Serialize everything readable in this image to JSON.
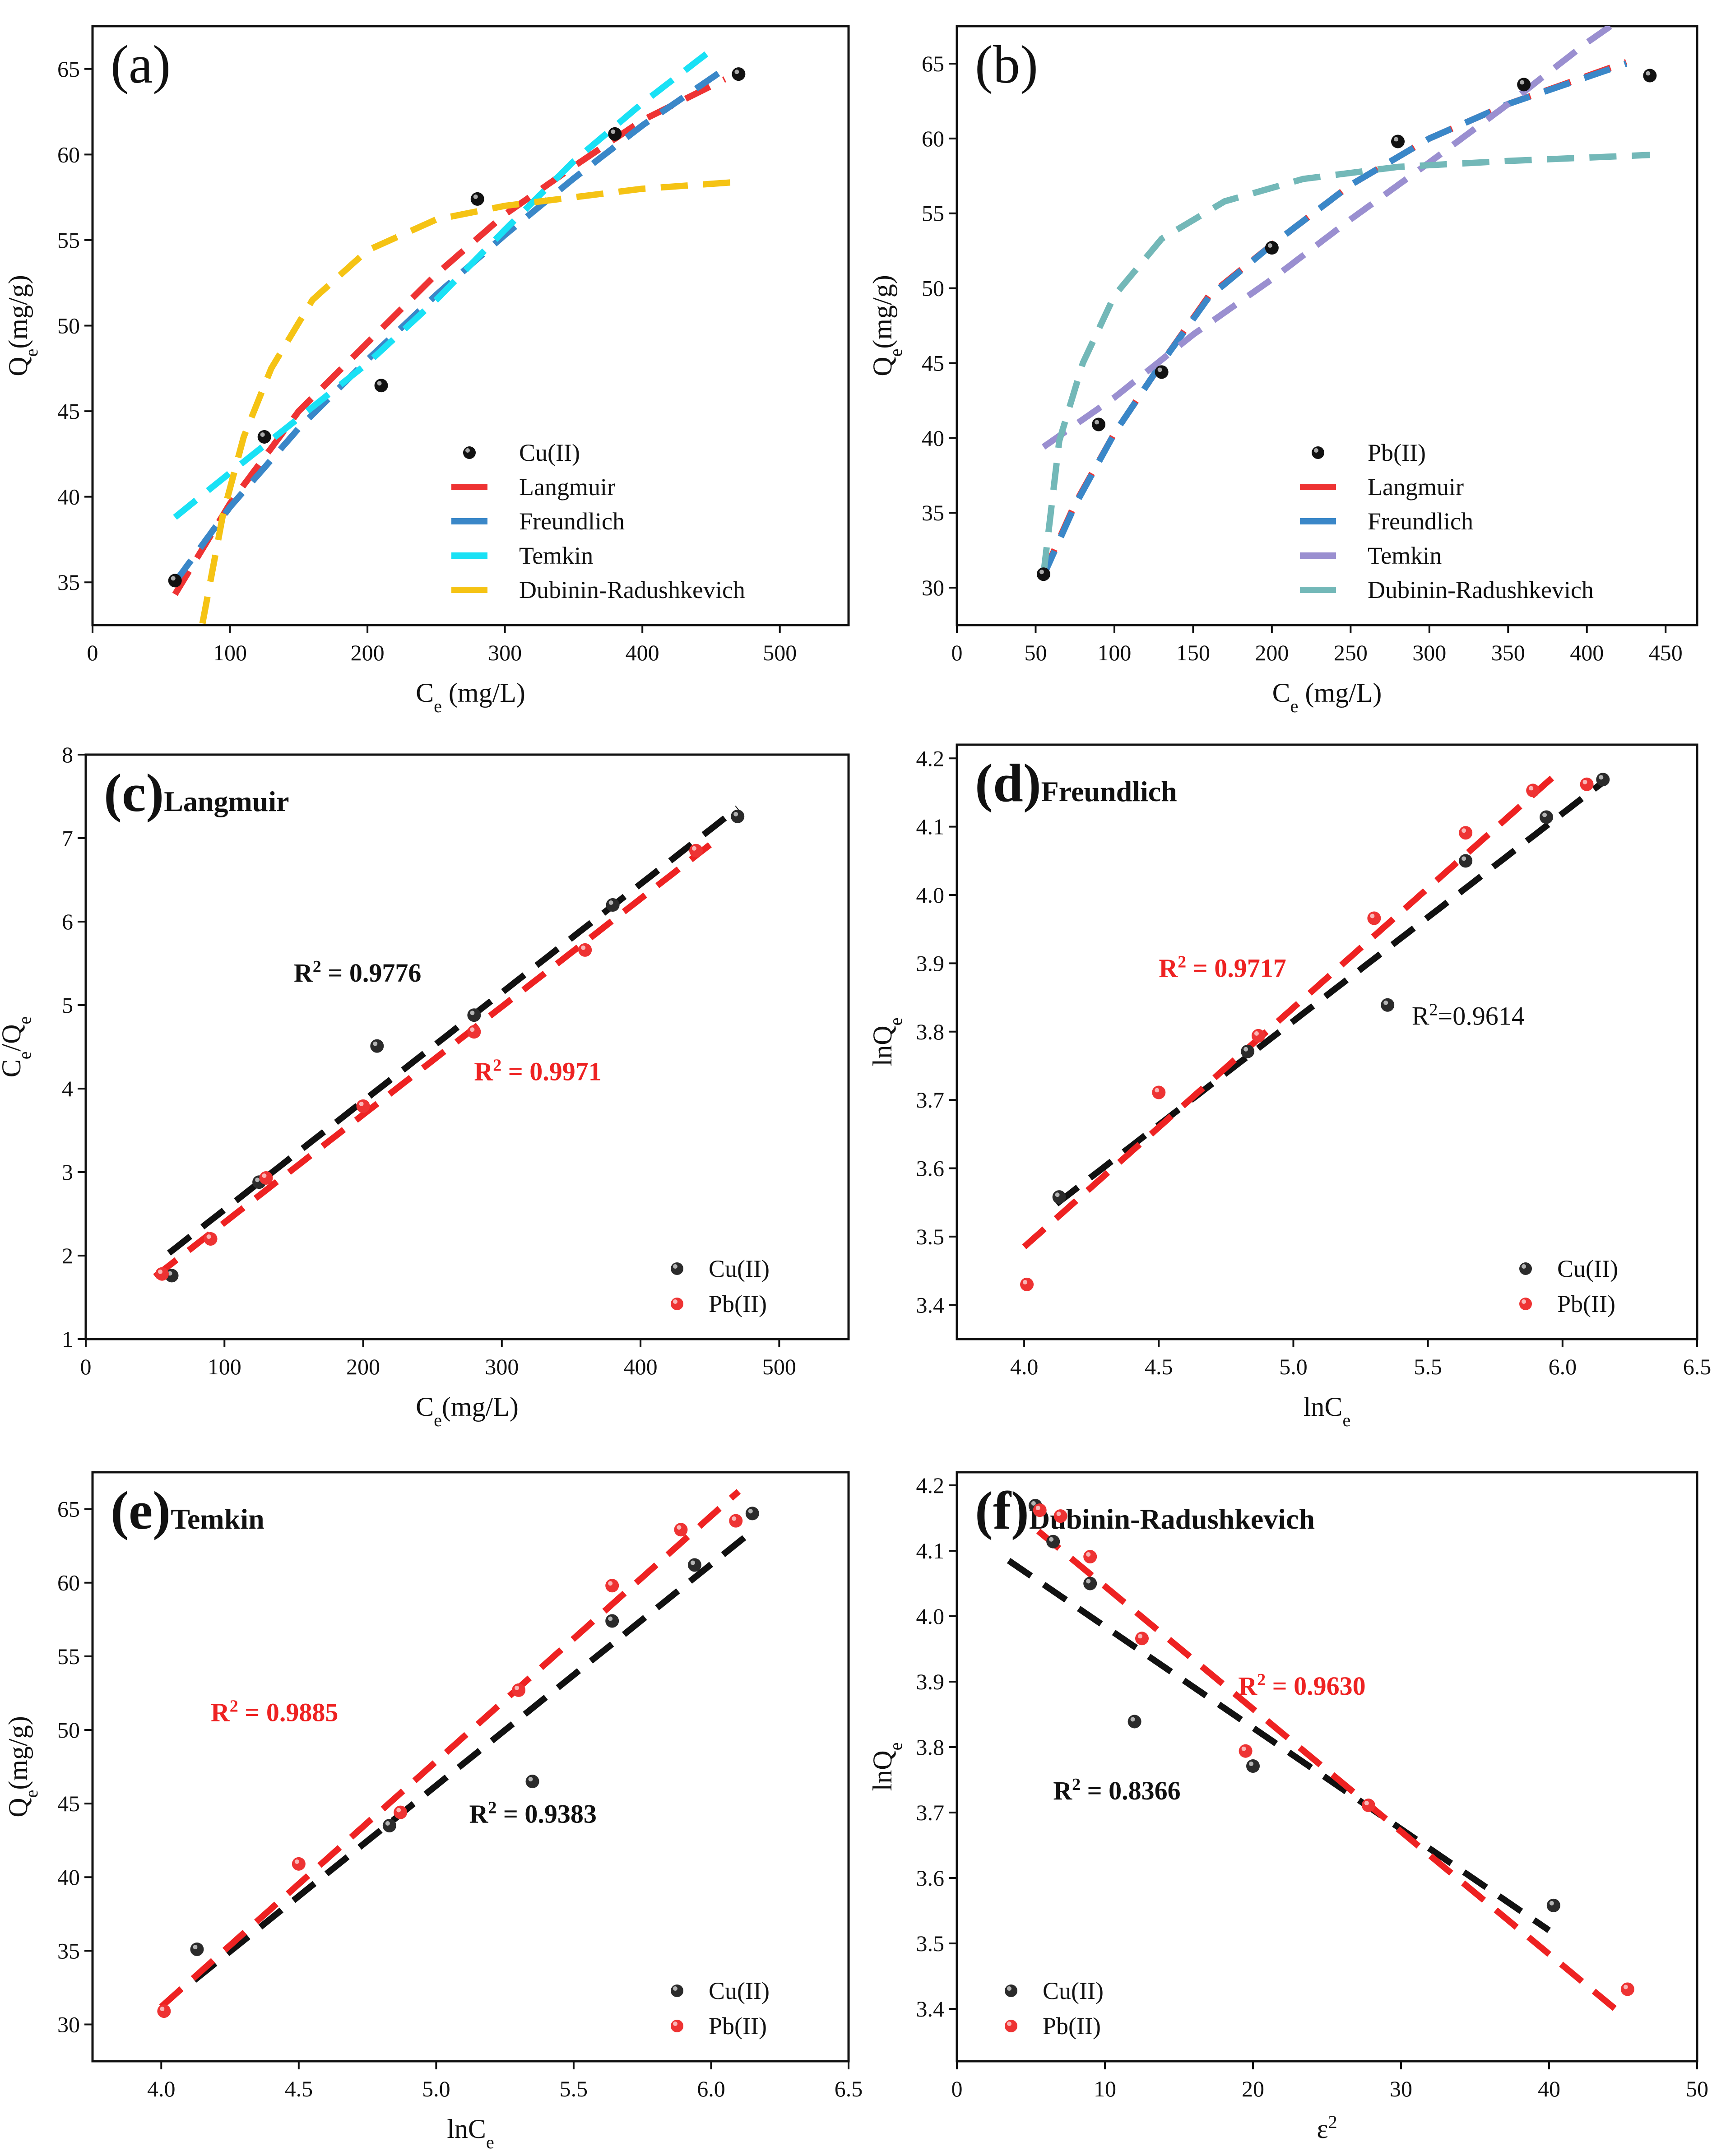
{
  "chart_data": [
    {
      "panel": "a",
      "type": "scatter",
      "panel_label": "(a)",
      "subtitle": "",
      "xlabel_main": "C",
      "xlabel_sub": "e",
      "xlabel_tail": " (mg/L)",
      "ylabel_main": "Q",
      "ylabel_sub": "e",
      "ylabel_tail": "(mg/g)",
      "xlim": [
        0,
        550
      ],
      "ylim": [
        32.5,
        67.5
      ],
      "xticks": [
        0,
        100,
        200,
        300,
        400,
        500
      ],
      "yticks": [
        35,
        40,
        45,
        50,
        55,
        60,
        65
      ],
      "legend_position": "bottom-right",
      "points": {
        "name": "Cu(II)",
        "color": "#111111",
        "x": [
          60,
          125,
          210,
          280,
          380,
          470
        ],
        "y": [
          35.1,
          43.5,
          46.5,
          57.4,
          61.2,
          64.7
        ]
      },
      "fits": [
        {
          "name": "Langmuir",
          "color": "#ee3333",
          "x": [
            60,
            100,
            150,
            200,
            250,
            300,
            350,
            400,
            460
          ],
          "y": [
            34.3,
            39.6,
            45.0,
            49.0,
            53.0,
            56.5,
            59.3,
            62.0,
            64.4
          ]
        },
        {
          "name": "Freundlich",
          "color": "#3a87c8",
          "x": [
            60,
            100,
            150,
            200,
            250,
            300,
            350,
            400,
            460
          ],
          "y": [
            35.0,
            39.4,
            44.0,
            48.0,
            51.8,
            55.3,
            58.6,
            61.7,
            65.0
          ]
        },
        {
          "name": "Temkin",
          "color": "#19e1f5",
          "x": [
            60,
            100,
            150,
            200,
            250,
            300,
            350,
            400,
            455
          ],
          "y": [
            38.8,
            41.4,
            44.6,
            47.8,
            51.5,
            55.6,
            59.6,
            63.0,
            66.4
          ]
        },
        {
          "name": "Dubinin-Radushkevich",
          "color": "#f5c314",
          "x": [
            80,
            95,
            110,
            130,
            160,
            200,
            250,
            300,
            400,
            470
          ],
          "y": [
            32.6,
            39.0,
            43.5,
            47.5,
            51.5,
            54.4,
            56.2,
            57.0,
            58.0,
            58.4
          ]
        }
      ]
    },
    {
      "panel": "b",
      "type": "scatter",
      "panel_label": "(b)",
      "subtitle": "",
      "xlabel_main": "C",
      "xlabel_sub": "e",
      "xlabel_tail": " (mg/L)",
      "ylabel_main": "Q",
      "ylabel_sub": "e",
      "ylabel_tail": "(mg/g)",
      "xlim": [
        0,
        470
      ],
      "ylim": [
        27.5,
        67.5
      ],
      "xticks": [
        0,
        50,
        100,
        150,
        200,
        250,
        300,
        350,
        400,
        450
      ],
      "yticks": [
        30,
        35,
        40,
        45,
        50,
        55,
        60,
        65
      ],
      "legend_position": "bottom-right",
      "points": {
        "name": "Pb(II)",
        "color": "#111111",
        "x": [
          55,
          90,
          130,
          200,
          280,
          360,
          440
        ],
        "y": [
          30.9,
          40.9,
          44.4,
          52.7,
          59.8,
          63.6,
          64.2
        ]
      },
      "fits": [
        {
          "name": "Langmuir",
          "color": "#ee3333",
          "x": [
            55,
            75,
            100,
            130,
            160,
            200,
            250,
            300,
            350,
            425
          ],
          "y": [
            30.9,
            35.6,
            40.3,
            45.0,
            49.5,
            52.9,
            56.9,
            60.0,
            62.3,
            65.1
          ]
        },
        {
          "name": "Freundlich",
          "color": "#3a87c8",
          "x": [
            55,
            75,
            100,
            130,
            160,
            200,
            250,
            300,
            350,
            425
          ],
          "y": [
            30.8,
            35.5,
            40.3,
            45.0,
            49.4,
            52.9,
            56.9,
            60.0,
            62.3,
            65.0
          ]
        },
        {
          "name": "Temkin",
          "color": "#9a8fd0",
          "x": [
            55,
            100,
            150,
            200,
            250,
            300,
            350,
            400,
            415
          ],
          "y": [
            39.4,
            42.7,
            46.9,
            50.6,
            54.6,
            58.4,
            62.3,
            66.4,
            67.5
          ]
        },
        {
          "name": "Dubinin-Radushkevich",
          "color": "#73b8b8",
          "x": [
            55,
            65,
            80,
            100,
            130,
            170,
            220,
            280,
            350,
            440
          ],
          "y": [
            30.9,
            39.8,
            45.0,
            49.5,
            53.3,
            55.8,
            57.3,
            58.1,
            58.5,
            58.9
          ]
        }
      ]
    },
    {
      "panel": "c",
      "type": "scatter",
      "panel_label": "(c)",
      "subtitle": "Langmuir",
      "xlabel_main": "C",
      "xlabel_sub": "e",
      "xlabel_tail": "(mg/L)",
      "ylabel_main": "C",
      "ylabel_sub": "e",
      "ylabel_tail": "/Q",
      "ylabel_sub2": "e",
      "xlim": [
        0,
        550
      ],
      "ylim": [
        1,
        8
      ],
      "xticks": [
        0,
        100,
        200,
        300,
        400,
        500
      ],
      "yticks": [
        1,
        2,
        3,
        4,
        5,
        6,
        7,
        8
      ],
      "legend_position": "bottom-right",
      "series": [
        {
          "name": "Cu(II)",
          "color": "#2b2b2b",
          "x": [
            62,
            125,
            210,
            280,
            380,
            470
          ],
          "y": [
            1.76,
            2.88,
            4.51,
            4.88,
            6.2,
            7.26
          ]
        },
        {
          "name": "Pb(II)",
          "color": "#ee3333",
          "x": [
            55,
            90,
            130,
            200,
            280,
            360,
            440
          ],
          "y": [
            1.78,
            2.2,
            2.93,
            3.79,
            4.68,
            5.66,
            6.85
          ]
        }
      ],
      "fits": [
        {
          "name": "Cu(II) fit",
          "color": "#111111",
          "x": [
            60,
            470
          ],
          "y": [
            2.03,
            7.36
          ]
        },
        {
          "name": "Pb(II) fit",
          "color": "#ee2222",
          "x": [
            50,
            450
          ],
          "y": [
            1.75,
            6.92
          ]
        }
      ],
      "annotations": [
        {
          "text_main": "R",
          "text_sup": "2",
          "text_tail": " = 0.9776",
          "color": "#111111",
          "x": 150,
          "y": 5.28
        },
        {
          "text_main": "R",
          "text_sup": "2",
          "text_tail": " = 0.9971",
          "color": "#ee2222",
          "x": 280,
          "y": 4.1
        }
      ]
    },
    {
      "panel": "d",
      "type": "scatter",
      "panel_label": "(d)",
      "subtitle": "Freundlich",
      "xlabel_main": "lnC",
      "xlabel_sub": "e",
      "xlabel_tail": "",
      "ylabel_main": "lnQ",
      "ylabel_sub": "e",
      "ylabel_tail": "",
      "xlim": [
        3.75,
        6.5
      ],
      "ylim": [
        3.35,
        4.22
      ],
      "xticks": [
        4.0,
        4.5,
        5.0,
        5.5,
        6.0,
        6.5
      ],
      "yticks": [
        3.4,
        3.5,
        3.6,
        3.7,
        3.8,
        3.9,
        4.0,
        4.1,
        4.2
      ],
      "legend_position": "bottom-right",
      "series": [
        {
          "name": "Cu(II)",
          "color": "#2b2b2b",
          "x": [
            4.13,
            4.83,
            5.35,
            5.64,
            5.94,
            6.15
          ],
          "y": [
            3.558,
            3.771,
            3.839,
            4.05,
            4.114,
            4.169
          ]
        },
        {
          "name": "Pb(II)",
          "color": "#ee3333",
          "x": [
            4.01,
            4.5,
            4.87,
            5.3,
            5.64,
            5.89,
            6.09
          ],
          "y": [
            3.43,
            3.711,
            3.794,
            3.966,
            4.091,
            4.153,
            4.162
          ]
        }
      ],
      "fits": [
        {
          "name": "Cu(II) fit",
          "color": "#111111",
          "x": [
            4.12,
            6.15
          ],
          "y": [
            3.548,
            4.165
          ]
        },
        {
          "name": "Pb(II) fit",
          "color": "#ee2222",
          "x": [
            4.0,
            6.0
          ],
          "y": [
            3.485,
            4.185
          ]
        }
      ],
      "annotations": [
        {
          "text_main": "R",
          "text_sup": "2",
          "text_tail": " = 0.9717",
          "color": "#ee2222",
          "bold": true,
          "x": 4.5,
          "y": 3.88
        },
        {
          "text_main": "R",
          "text_sup": "2",
          "text_tail": "=0.9614",
          "color": "#111111",
          "bold": false,
          "x": 5.44,
          "y": 3.81
        }
      ]
    },
    {
      "panel": "e",
      "type": "scatter",
      "panel_label": "(e)",
      "subtitle": "Temkin",
      "xlabel_main": "lnC",
      "xlabel_sub": "e",
      "xlabel_tail": "",
      "ylabel_main": "Q",
      "ylabel_sub": "e",
      "ylabel_tail": "(mg/g)",
      "xlim": [
        3.75,
        6.5
      ],
      "ylim": [
        27.5,
        67.5
      ],
      "xticks": [
        4.0,
        4.5,
        5.0,
        5.5,
        6.0,
        6.5
      ],
      "yticks": [
        30,
        35,
        40,
        45,
        50,
        55,
        60,
        65
      ],
      "legend_position": "bottom-right",
      "series": [
        {
          "name": "Cu(II)",
          "color": "#2b2b2b",
          "x": [
            4.13,
            4.83,
            5.35,
            5.64,
            5.94,
            6.15
          ],
          "y": [
            35.1,
            43.5,
            46.5,
            57.4,
            61.2,
            64.7
          ]
        },
        {
          "name": "Pb(II)",
          "color": "#ee3333",
          "x": [
            4.01,
            4.5,
            4.87,
            5.3,
            5.64,
            5.89,
            6.09
          ],
          "y": [
            30.9,
            40.9,
            44.4,
            52.7,
            59.8,
            63.6,
            64.2
          ]
        }
      ],
      "fits": [
        {
          "name": "Cu(II) fit",
          "color": "#111111",
          "x": [
            4.12,
            6.15
          ],
          "y": [
            33.0,
            63.5
          ]
        },
        {
          "name": "Pb(II) fit",
          "color": "#ee2222",
          "x": [
            4.0,
            6.1
          ],
          "y": [
            31.2,
            66.2
          ]
        }
      ],
      "annotations": [
        {
          "text_main": "R",
          "text_sup": "2",
          "text_tail": " = 0.9885",
          "color": "#ee2222",
          "x": 4.18,
          "y": 50.6
        },
        {
          "text_main": "R",
          "text_sup": "2",
          "text_tail": " = 0.9383",
          "color": "#111111",
          "x": 5.12,
          "y": 43.7
        }
      ]
    },
    {
      "panel": "f",
      "type": "scatter",
      "panel_label": "(f)",
      "subtitle": "Dubinin-Radushkevich",
      "xlabel_main": "ε",
      "xlabel_sub": "",
      "xlabel_sup": "2",
      "xlabel_tail": "",
      "ylabel_main": "lnQ",
      "ylabel_sub": "e",
      "ylabel_tail": "",
      "xlim": [
        0,
        50
      ],
      "ylim": [
        3.32,
        4.22
      ],
      "xticks": [
        0,
        10,
        20,
        30,
        40,
        50
      ],
      "yticks": [
        3.4,
        3.5,
        3.6,
        3.7,
        3.8,
        3.9,
        4.0,
        4.1,
        4.2
      ],
      "legend_position": "bottom-left",
      "series": [
        {
          "name": "Cu(II)",
          "color": "#2b2b2b",
          "x": [
            5.3,
            6.5,
            9.0,
            12.0,
            20.0,
            40.3
          ],
          "y": [
            4.169,
            4.114,
            4.05,
            3.839,
            3.771,
            3.558
          ]
        },
        {
          "name": "Pb(II)",
          "color": "#ee3333",
          "x": [
            5.6,
            7.0,
            9.0,
            12.5,
            19.5,
            27.8,
            45.3
          ],
          "y": [
            4.162,
            4.153,
            4.091,
            3.966,
            3.794,
            3.711,
            3.43
          ]
        }
      ],
      "fits": [
        {
          "name": "Cu(II) fit",
          "color": "#111111",
          "x": [
            3.5,
            40
          ],
          "y": [
            4.085,
            3.52
          ]
        },
        {
          "name": "Pb(II) fit",
          "color": "#ee2222",
          "x": [
            5.5,
            45
          ],
          "y": [
            4.13,
            3.39
          ]
        }
      ],
      "annotations": [
        {
          "text_main": "R",
          "text_sup": "2",
          "text_tail": " = 0.9630",
          "color": "#ee2222",
          "x": 19,
          "y": 3.88
        },
        {
          "text_main": "R",
          "text_sup": "2",
          "text_tail": " = 0.8366",
          "color": "#111111",
          "x": 6.5,
          "y": 3.72
        }
      ]
    }
  ]
}
